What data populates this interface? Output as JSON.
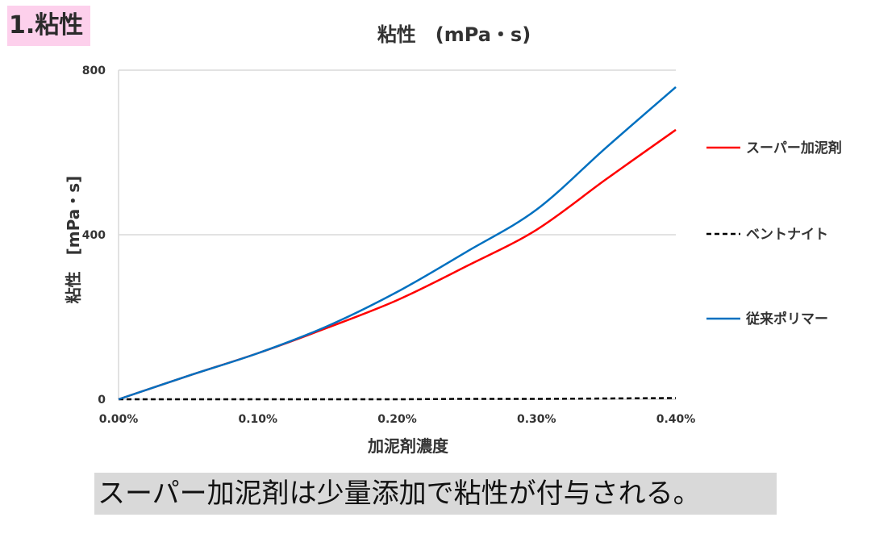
{
  "section_label": "1.粘性",
  "caption": "スーパー加泥剤は少量添加で粘性が付与される。",
  "chart_data": {
    "type": "line",
    "title": "粘性　(mPa・s)",
    "xlabel": "加泥剤濃度",
    "ylabel": "粘性　[mPa・s]",
    "x": [
      0,
      0.05,
      0.1,
      0.15,
      0.2,
      0.25,
      0.3,
      0.35,
      0.4
    ],
    "x_tick_labels": [
      "0.00%",
      "0.10%",
      "0.20%",
      "0.30%",
      "0.40%"
    ],
    "x_ticks": [
      0,
      0.1,
      0.2,
      0.3,
      0.4
    ],
    "xlim": [
      0,
      0.4
    ],
    "y_ticks": [
      0,
      400,
      800
    ],
    "y_tick_labels": [
      "0",
      "400",
      "800"
    ],
    "ylim": [
      0,
      800
    ],
    "grid": true,
    "legend_position": "right",
    "series": [
      {
        "name": "スーパー加泥剤",
        "color": "#ff0000",
        "dash": false,
        "values": [
          0,
          57,
          112,
          174,
          241,
          324,
          412,
          535,
          655
        ]
      },
      {
        "name": "ベントナイト",
        "color": "#000000",
        "dash": true,
        "values": [
          0,
          0,
          0,
          0,
          0,
          1,
          1,
          2,
          3
        ]
      },
      {
        "name": "従来ポリマー",
        "color": "#0070c0",
        "dash": false,
        "values": [
          0,
          57,
          112,
          178,
          261,
          359,
          461,
          612,
          759
        ]
      }
    ]
  }
}
